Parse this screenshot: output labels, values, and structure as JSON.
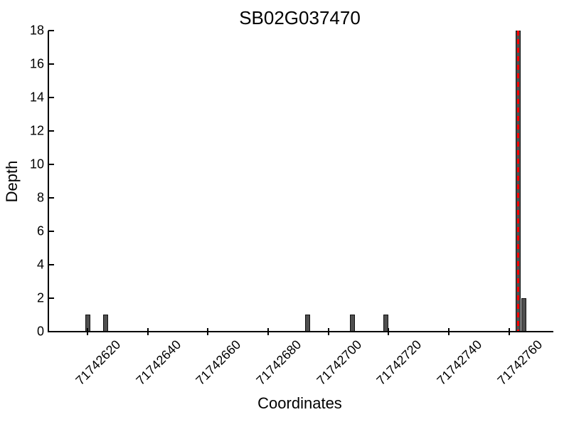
{
  "chart_data": {
    "type": "bar",
    "title": "SB02G037470",
    "xlabel": "Coordinates",
    "ylabel": "Depth",
    "x": [
      71742620,
      71742626,
      71742693,
      71742708,
      71742719,
      71742763,
      71742765
    ],
    "values": [
      1,
      1,
      1,
      1,
      1,
      18,
      2
    ],
    "bar_width_units": 1.6,
    "bar_fill_color": "#4f4f4f",
    "bar_edge_color": "#111111",
    "vline": {
      "x": 71742763,
      "color": "#ff0000",
      "style": "dashed",
      "ymin": 0,
      "ymax": 18
    },
    "xlim": [
      71742607,
      71742774
    ],
    "ylim": [
      0,
      18
    ],
    "xticks": [
      71742620,
      71742640,
      71742660,
      71742680,
      71742700,
      71742720,
      71742740,
      71742760
    ],
    "yticks": [
      0,
      2,
      4,
      6,
      8,
      10,
      12,
      14,
      16,
      18
    ],
    "xtick_rotation": 45,
    "grid": false,
    "legend": null,
    "axis_color": "#000000",
    "background_color": "#ffffff"
  }
}
